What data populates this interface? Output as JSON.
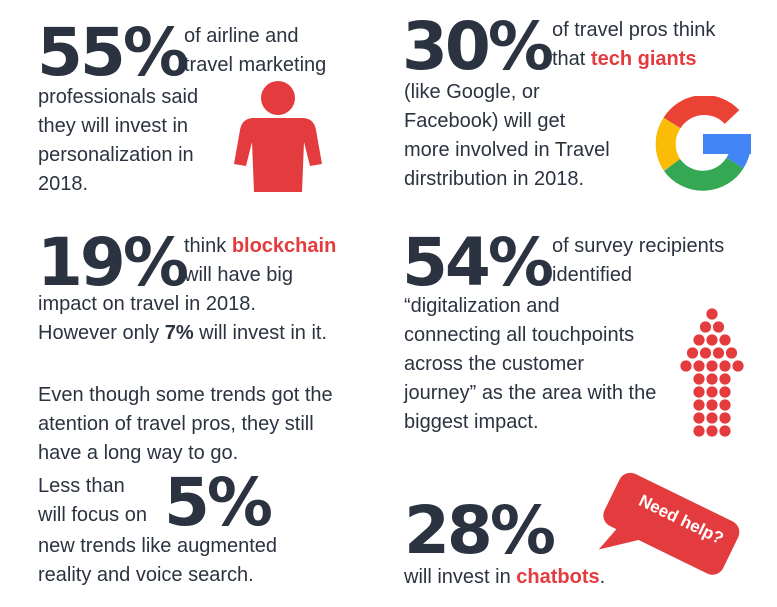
{
  "stats": {
    "s55": {
      "value": "55%",
      "line1": "of airline and",
      "line2": "travel marketing",
      "line3": "professionals said",
      "line4": "they will invest in",
      "line5": "personalization in",
      "line6": "2018."
    },
    "s30": {
      "value": "30%",
      "line1": "of travel pros think",
      "line2_pre": "that ",
      "line2_hl": "tech giants",
      "line3": "(like Google, or",
      "line4": "Facebook) will get",
      "line5": "more involved in Travel",
      "line6": "dirstribution in 2018."
    },
    "s19": {
      "value": "19%",
      "line1_pre": "think ",
      "line1_hl": "blockchain",
      "line2": "will have big",
      "line3": "impact on travel in 2018.",
      "line4_pre": "However only ",
      "line4_hl": "7%",
      "line4_post": " will invest in it."
    },
    "s54": {
      "value": "54%",
      "line1": "of survey recipients",
      "line2": "identified",
      "line3": "“digitalization and",
      "line4": "connecting all touchpoints",
      "line5": "across the customer",
      "line6": "journey” as the area with the",
      "line7": "biggest impact."
    },
    "s5": {
      "value": "5%",
      "intro1": "Even though some trends got the",
      "intro2": "atention of travel pros, they still",
      "intro3": "have a long way to go.",
      "line1": "Less than",
      "line2": "will focus on",
      "line3": "new trends like augmented",
      "line4": "reality and voice search."
    },
    "s28": {
      "value": "28%",
      "line1_pre": "will invest  in ",
      "line1_hl": "chatbots",
      "line1_post": ".",
      "bubble": "Need help?"
    }
  },
  "colors": {
    "accent": "#e33b3e",
    "text": "#2b3340",
    "google_red": "#ea4335",
    "google_yellow": "#fbbc05",
    "google_green": "#34a853",
    "google_blue": "#4285f4"
  },
  "icons": [
    "person-icon",
    "google-logo-icon",
    "dotted-up-arrow-icon",
    "speech-bubble-icon"
  ]
}
